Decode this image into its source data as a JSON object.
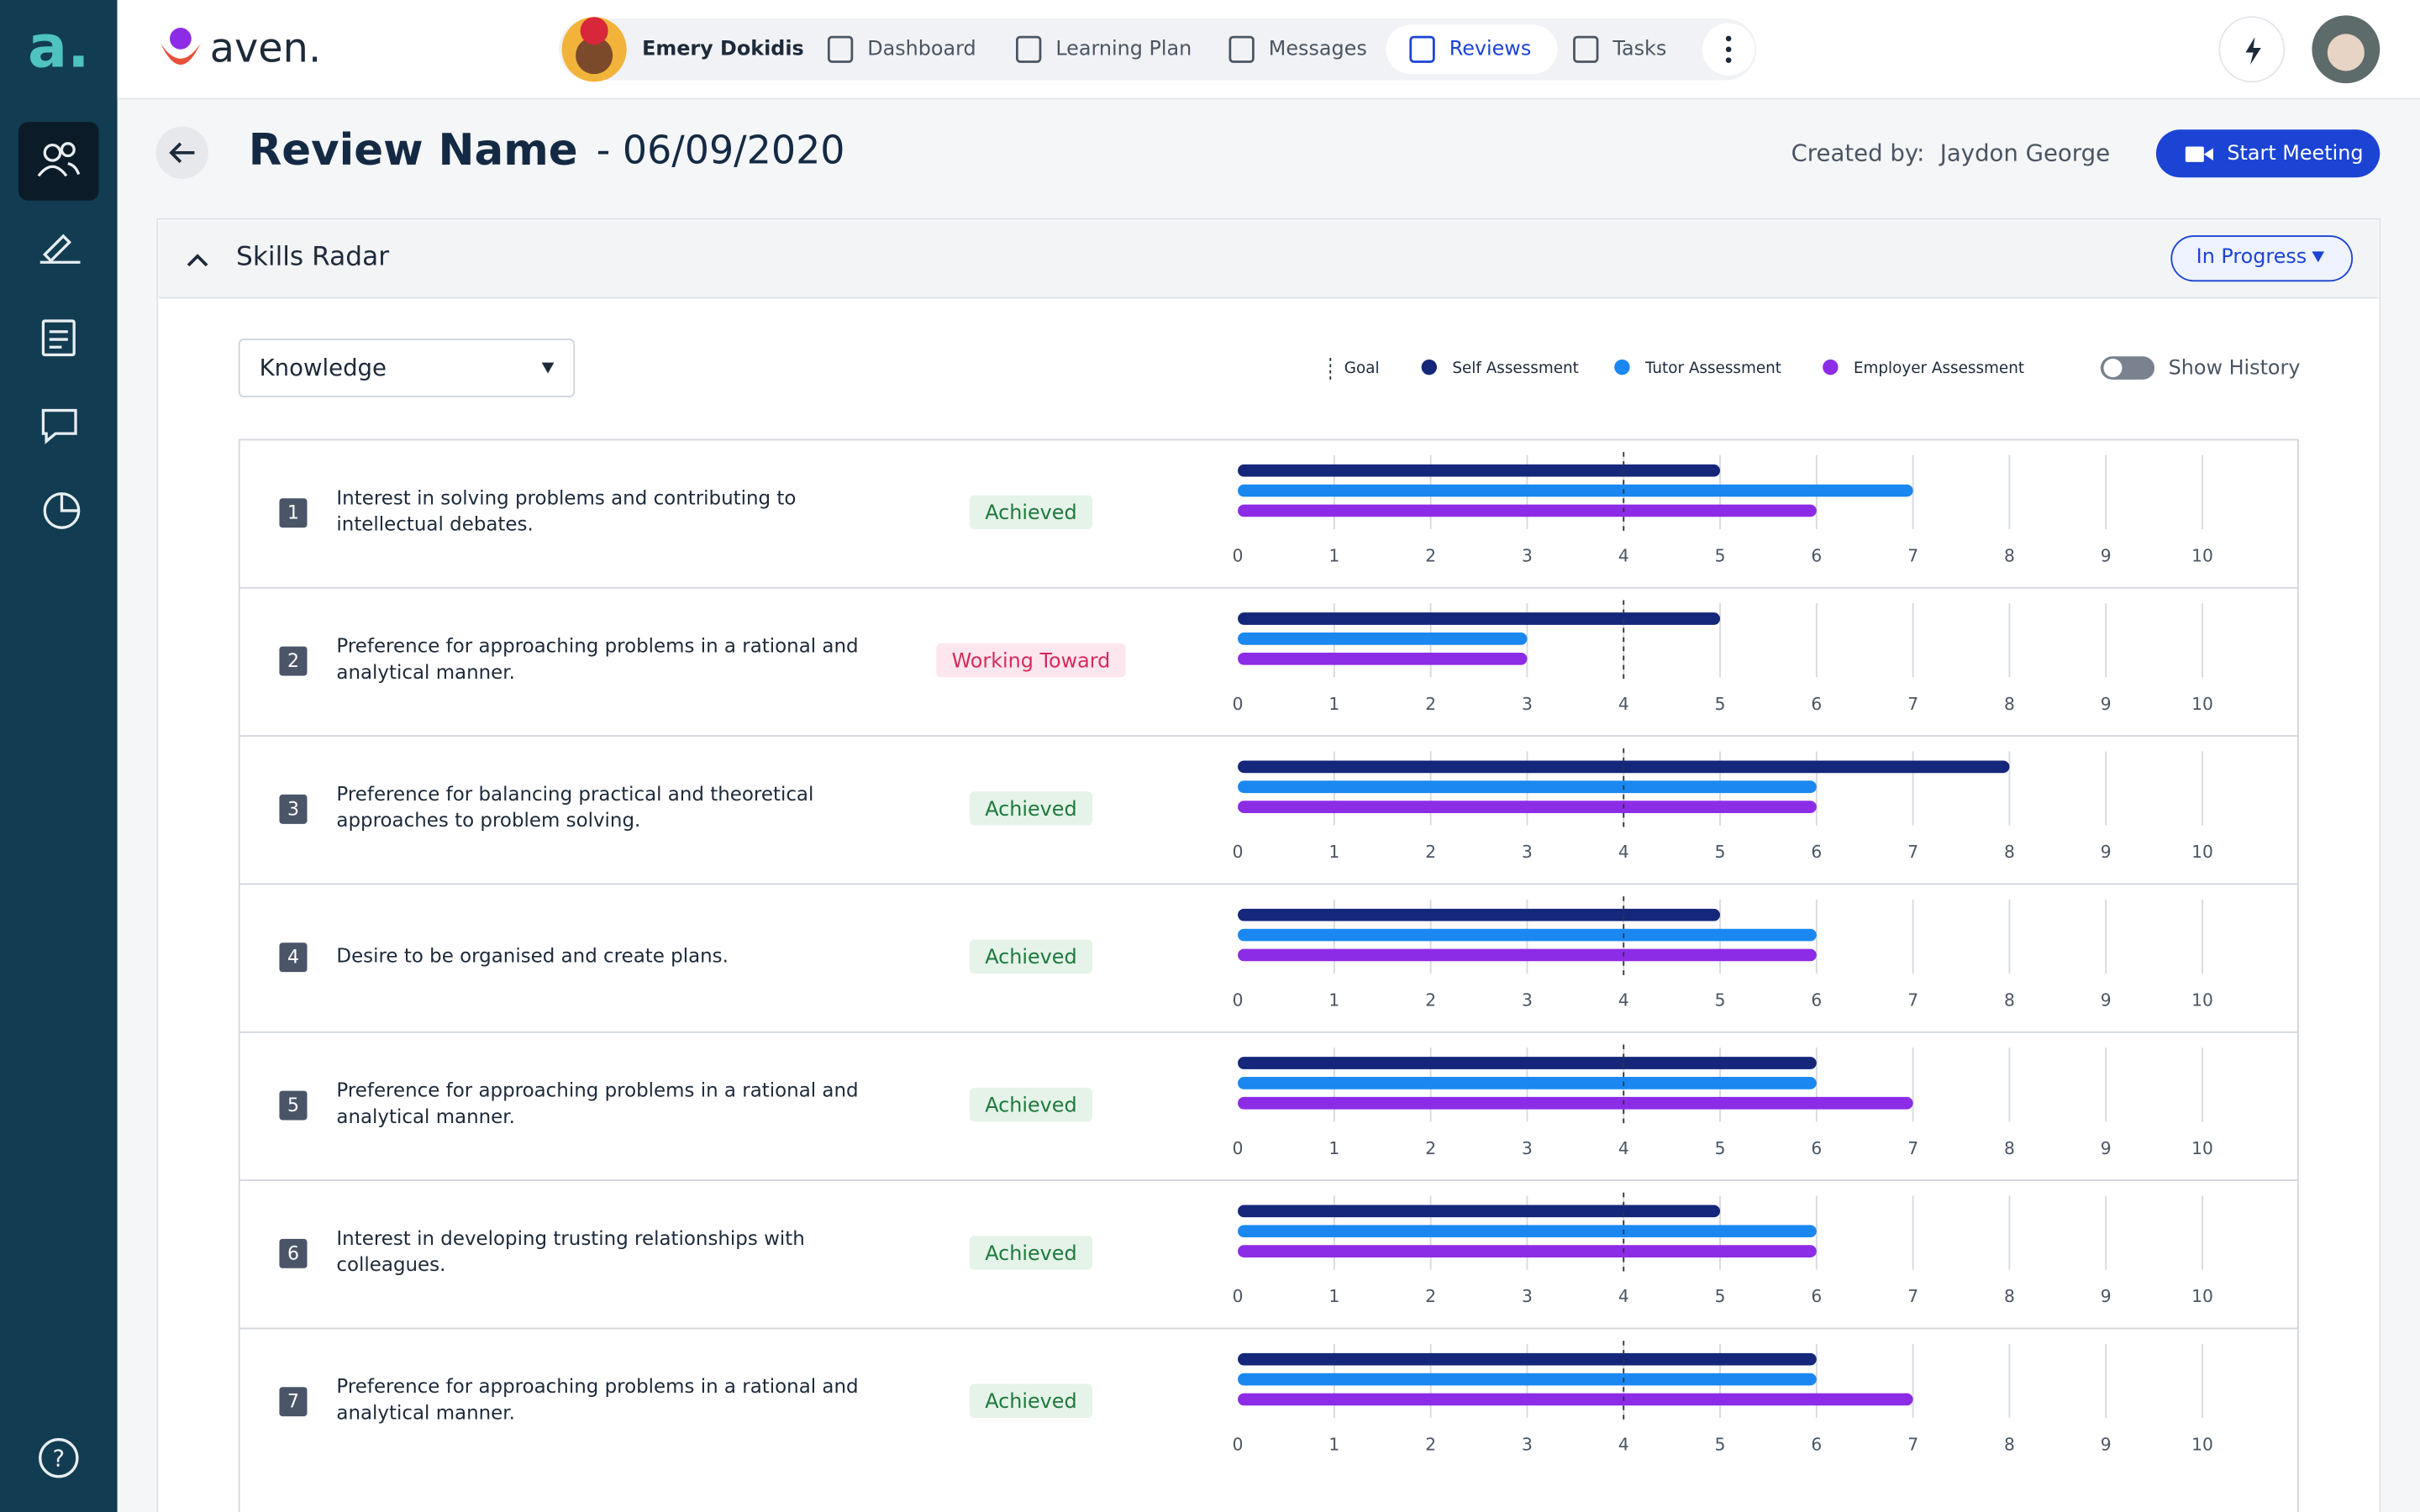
{
  "app": {
    "logo": "a.",
    "brand": "aven."
  },
  "learner": "Emery Dokidis",
  "nav": [
    "Dashboard",
    "Learning Plan",
    "Messages",
    "Reviews",
    "Tasks"
  ],
  "active_nav": 3,
  "review": {
    "title": "Review Name",
    "date": "- 06/09/2020",
    "created_by_label": "Created by:",
    "created_by": "Jaydon George",
    "start_meeting": "Start Meeting"
  },
  "panel": {
    "title": "Skills Radar",
    "status": "In Progress",
    "filter": "Knowledge",
    "show_history": "Show History"
  },
  "legend": {
    "goal": "Goal",
    "series": [
      {
        "name": "Self Assessment",
        "color": "#15277a"
      },
      {
        "name": "Tutor Assessment",
        "color": "#1a88f0"
      },
      {
        "name": "Employer Assessment",
        "color": "#8d2ce6"
      }
    ]
  },
  "chart": {
    "xlim": [
      0,
      10
    ],
    "xticks": [
      0,
      1,
      2,
      3,
      4,
      5,
      6,
      7,
      8,
      9,
      10
    ],
    "goal": 4
  },
  "skills": [
    {
      "number": 1,
      "text": "Interest in solving problems and contributing to intellectual debates.",
      "status": "Achieved",
      "values": [
        5,
        7,
        6
      ]
    },
    {
      "number": 2,
      "text": "Preference for approaching problems in a rational and analytical manner.",
      "status": "Working Toward",
      "values": [
        5,
        3,
        3
      ]
    },
    {
      "number": 3,
      "text": "Preference for balancing practical and theoretical approaches to problem solving.",
      "status": "Achieved",
      "values": [
        8,
        6,
        6
      ]
    },
    {
      "number": 4,
      "text": "Desire to be organised and create plans.",
      "status": "Achieved",
      "values": [
        5,
        6,
        6
      ]
    },
    {
      "number": 5,
      "text": "Preference for approaching problems in a rational and analytical manner.",
      "status": "Achieved",
      "values": [
        6,
        6,
        7
      ]
    },
    {
      "number": 6,
      "text": "Interest in developing trusting relationships with colleagues.",
      "status": "Achieved",
      "values": [
        5,
        6,
        6
      ]
    },
    {
      "number": 7,
      "text": "Preference for approaching problems in a rational and analytical manner.",
      "status": "Achieved",
      "values": [
        6,
        6,
        7
      ]
    }
  ]
}
